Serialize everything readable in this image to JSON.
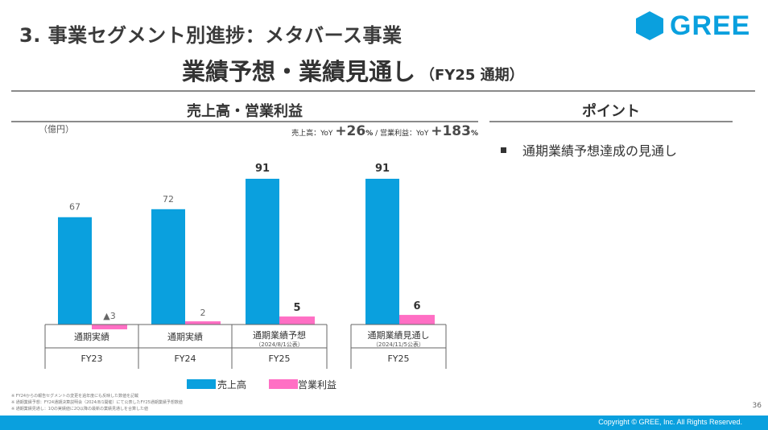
{
  "header": {
    "section_title": "3. 事業セグメント別進捗：メタバース事業",
    "main_title": "業績予想・業績見通し",
    "main_title_sub": "（FY25 通期）",
    "logo_text": "GREE"
  },
  "chart_heading": "売上高・営業利益",
  "points": {
    "heading": "ポイント",
    "items": [
      "通期業績予想達成の見通し"
    ]
  },
  "yoy": {
    "revenue_label": "売上高：YoY",
    "revenue_value": "+26",
    "separator": "/",
    "profit_label": "営業利益：YoY",
    "profit_value": "+183",
    "unit": "%"
  },
  "chart_data": {
    "type": "bar",
    "unit_label": "（億円）",
    "ylim": [
      -3,
      91
    ],
    "groups": [
      {
        "category": "通期実績",
        "sub": "",
        "year": "FY23",
        "revenue": 67,
        "profit": -3,
        "revenue_label": "67",
        "profit_label": "▲3"
      },
      {
        "category": "通期実績",
        "sub": "",
        "year": "FY24",
        "revenue": 72,
        "profit": 2,
        "revenue_label": "72",
        "profit_label": "2"
      },
      {
        "category": "通期業績予想",
        "sub": "（2024/8/1公表）",
        "year": "FY25",
        "revenue": 91,
        "profit": 5,
        "revenue_label": "91",
        "profit_label": "5"
      },
      {
        "category": "通期業績見通し",
        "sub": "（2024/11/5公表）",
        "year": "FY25",
        "revenue": 91,
        "profit": 6,
        "revenue_label": "91",
        "profit_label": "6"
      }
    ],
    "series": [
      {
        "name": "売上高",
        "color": "#0aa0de"
      },
      {
        "name": "営業利益",
        "color": "#ff6fc4"
      }
    ]
  },
  "footnotes": [
    "※ FY24からの報告セグメントの変更を過年度にも反映した数値を記載",
    "※ 通期業績予想：FY24通期決算説明会（2024/8/1開催）にて公表したFY25通期業績予想数値",
    "※ 通期業績見通し：1Qの実績値に2Q以降の最新の業績見通しを合算した値"
  ],
  "page_number": "36",
  "copyright": "Copyright © GREE, Inc. All Rights Reserved."
}
